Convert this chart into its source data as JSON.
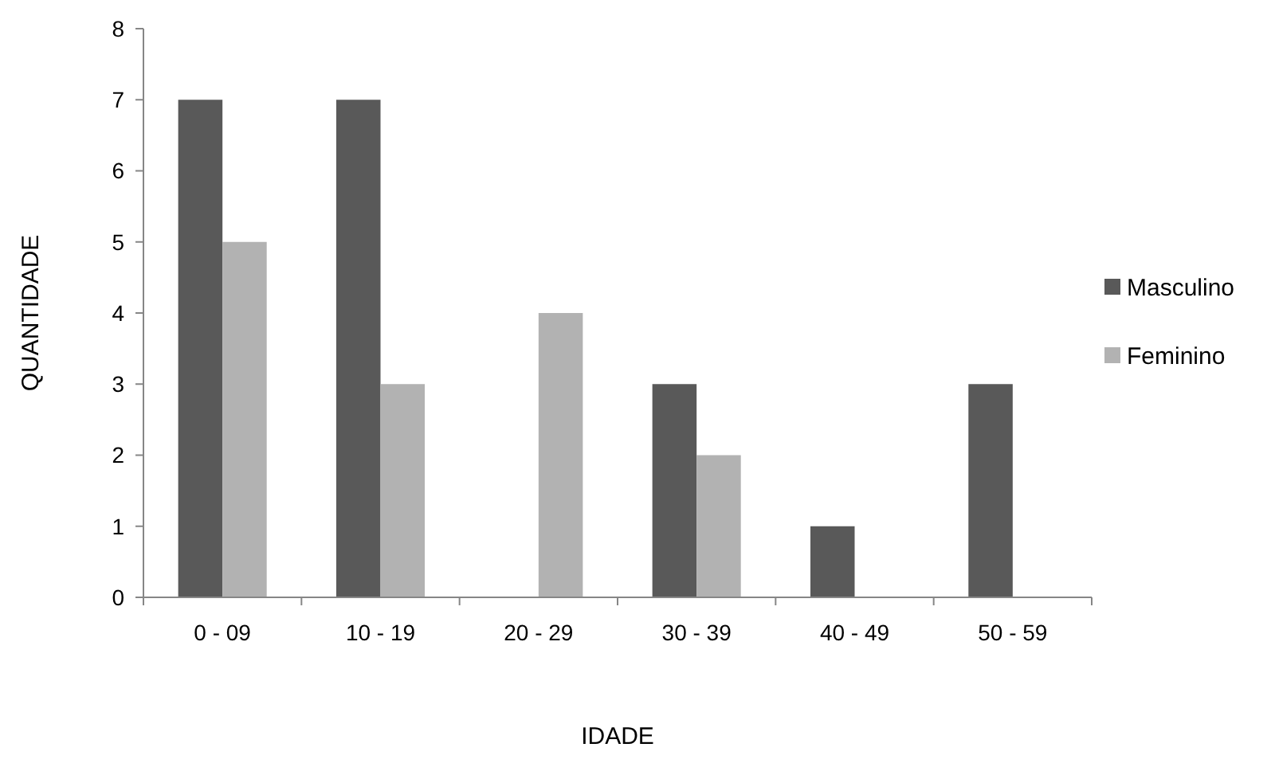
{
  "chart_data": {
    "type": "bar",
    "xlabel": "IDADE",
    "ylabel": "QUANTIDADE",
    "categories": [
      "0 - 09",
      "10 - 19",
      "20 - 29",
      "30 - 39",
      "40 - 49",
      "50 - 59"
    ],
    "series": [
      {
        "name": "Masculino",
        "color": "#595959",
        "values": [
          7,
          7,
          0,
          3,
          1,
          3
        ]
      },
      {
        "name": "Feminino",
        "color": "#b2b2b2",
        "values": [
          5,
          3,
          4,
          2,
          0,
          0
        ]
      }
    ],
    "ylim": [
      0,
      8
    ],
    "yticks": [
      0,
      1,
      2,
      3,
      4,
      5,
      6,
      7,
      8
    ],
    "grid": false,
    "legend": "right"
  }
}
